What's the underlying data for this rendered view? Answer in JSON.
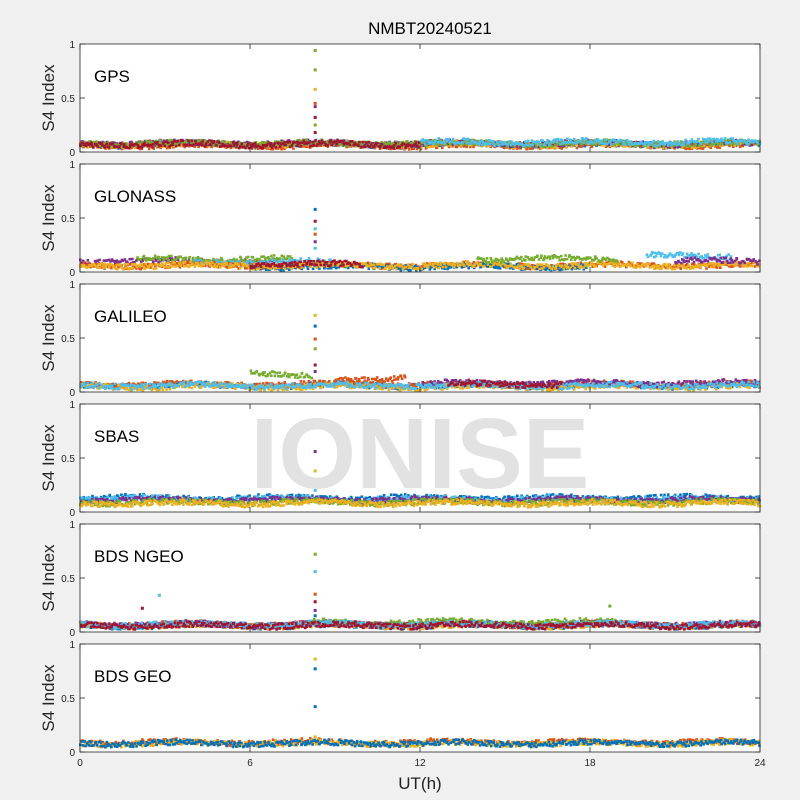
{
  "figure": {
    "title": "NMBT20240521",
    "watermark": "IONISE"
  },
  "colors": {
    "background": "#f0f0f0",
    "axes_bg": "#ffffff",
    "palette": [
      "#0072BD",
      "#D95319",
      "#EDB120",
      "#7E2F8E",
      "#77AC30",
      "#4DBEEE",
      "#A2142F"
    ],
    "watermark": "#e2e2e2"
  },
  "chart_data": [
    {
      "type": "scatter",
      "panel": "GPS",
      "title": "GPS",
      "ylabel": "S4 Index",
      "xlabel": "",
      "xlim": [
        0,
        24
      ],
      "ylim": [
        0,
        1
      ],
      "yticks": [
        "0",
        "0.5",
        "1"
      ],
      "xticks": [],
      "baseline": [
        {
          "color": "#0072BD",
          "level": 0.07,
          "t0": 0,
          "t1": 24
        },
        {
          "color": "#D95319",
          "level": 0.06,
          "t0": 0,
          "t1": 24
        },
        {
          "color": "#EDB120",
          "level": 0.07,
          "t0": 0,
          "t1": 24
        },
        {
          "color": "#7E2F8E",
          "level": 0.08,
          "t0": 0,
          "t1": 24
        },
        {
          "color": "#77AC30",
          "level": 0.08,
          "t0": 0,
          "t1": 24
        },
        {
          "color": "#4DBEEE",
          "level": 0.09,
          "t0": 12,
          "t1": 24
        },
        {
          "color": "#A2142F",
          "level": 0.07,
          "t0": 0,
          "t1": 12
        }
      ],
      "spike": {
        "t": 8.3,
        "points": [
          {
            "v": 0.94,
            "color": "#77AC30"
          },
          {
            "v": 0.76,
            "color": "#77AC30"
          },
          {
            "v": 0.58,
            "color": "#EDB120"
          },
          {
            "v": 0.45,
            "color": "#D95319"
          },
          {
            "v": 0.42,
            "color": "#7E2F8E"
          },
          {
            "v": 0.32,
            "color": "#A2142F"
          },
          {
            "v": 0.25,
            "color": "#77AC30"
          },
          {
            "v": 0.18,
            "color": "#A2142F"
          }
        ]
      }
    },
    {
      "type": "scatter",
      "panel": "GLONASS",
      "title": "GLONASS",
      "ylabel": "S4 Index",
      "xlabel": "",
      "xlim": [
        0,
        24
      ],
      "ylim": [
        0,
        1
      ],
      "yticks": [
        "0",
        "0.5",
        "1"
      ],
      "xticks": [],
      "baseline": [
        {
          "color": "#7E2F8E",
          "level": 0.1,
          "t0": 0,
          "t1": 7
        },
        {
          "color": "#77AC30",
          "level": 0.12,
          "t0": 2,
          "t1": 7.5
        },
        {
          "color": "#4DBEEE",
          "level": 0.09,
          "t0": 4,
          "t1": 9
        },
        {
          "color": "#D95319",
          "level": 0.06,
          "t0": 0,
          "t1": 24
        },
        {
          "color": "#0072BD",
          "level": 0.05,
          "t0": 6,
          "t1": 18
        },
        {
          "color": "#EDB120",
          "level": 0.06,
          "t0": 0,
          "t1": 24
        },
        {
          "color": "#77AC30",
          "level": 0.12,
          "t0": 14,
          "t1": 19
        },
        {
          "color": "#4DBEEE",
          "level": 0.15,
          "t0": 20,
          "t1": 23
        },
        {
          "color": "#7E2F8E",
          "level": 0.1,
          "t0": 21,
          "t1": 24
        },
        {
          "color": "#A2142F",
          "level": 0.07,
          "t0": 6,
          "t1": 10
        }
      ],
      "spike": {
        "t": 8.3,
        "points": [
          {
            "v": 0.58,
            "color": "#0072BD"
          },
          {
            "v": 0.47,
            "color": "#A2142F"
          },
          {
            "v": 0.4,
            "color": "#4DBEEE"
          },
          {
            "v": 0.35,
            "color": "#D95319"
          },
          {
            "v": 0.28,
            "color": "#7E2F8E"
          },
          {
            "v": 0.22,
            "color": "#4DBEEE"
          }
        ]
      }
    },
    {
      "type": "scatter",
      "panel": "GALILEO",
      "title": "GALILEO",
      "ylabel": "S4 Index",
      "xlabel": "",
      "xlim": [
        0,
        24
      ],
      "ylim": [
        0,
        1
      ],
      "yticks": [
        "0",
        "0.5",
        "1"
      ],
      "xticks": [],
      "baseline": [
        {
          "color": "#0072BD",
          "level": 0.06,
          "t0": 0,
          "t1": 24
        },
        {
          "color": "#D95319",
          "level": 0.07,
          "t0": 0,
          "t1": 24
        },
        {
          "color": "#EDB120",
          "level": 0.05,
          "t0": 0,
          "t1": 24
        },
        {
          "color": "#77AC30",
          "level": 0.16,
          "t0": 6,
          "t1": 8.2
        },
        {
          "color": "#D95319",
          "level": 0.12,
          "t0": 9,
          "t1": 11.5
        },
        {
          "color": "#7E2F8E",
          "level": 0.08,
          "t0": 12,
          "t1": 24
        },
        {
          "color": "#4DBEEE",
          "level": 0.06,
          "t0": 0,
          "t1": 24
        },
        {
          "color": "#A2142F",
          "level": 0.07,
          "t0": 13,
          "t1": 17
        }
      ],
      "spike": {
        "t": 8.3,
        "points": [
          {
            "v": 0.71,
            "color": "#EDB120"
          },
          {
            "v": 0.61,
            "color": "#0072BD"
          },
          {
            "v": 0.49,
            "color": "#D95319"
          },
          {
            "v": 0.4,
            "color": "#77AC30"
          },
          {
            "v": 0.25,
            "color": "#A2142F"
          },
          {
            "v": 0.19,
            "color": "#7E2F8E"
          }
        ]
      }
    },
    {
      "type": "scatter",
      "panel": "SBAS",
      "title": "SBAS",
      "ylabel": "S4 Index",
      "xlabel": "",
      "xlim": [
        0,
        24
      ],
      "ylim": [
        0,
        1
      ],
      "yticks": [
        "0",
        "0.5",
        "1"
      ],
      "xticks": [],
      "baseline": [
        {
          "color": "#0072BD",
          "level": 0.13,
          "t0": 0,
          "t1": 24
        },
        {
          "color": "#4DBEEE",
          "level": 0.12,
          "t0": 0,
          "t1": 24
        },
        {
          "color": "#7E2F8E",
          "level": 0.11,
          "t0": 0,
          "t1": 24
        },
        {
          "color": "#77AC30",
          "level": 0.09,
          "t0": 0,
          "t1": 24
        },
        {
          "color": "#EDB120",
          "level": 0.08,
          "t0": 0,
          "t1": 24
        }
      ],
      "spike": {
        "t": 8.3,
        "points": [
          {
            "v": 0.56,
            "color": "#7E2F8E"
          },
          {
            "v": 0.38,
            "color": "#EDB120"
          },
          {
            "v": 0.2,
            "color": "#4DBEEE"
          }
        ]
      }
    },
    {
      "type": "scatter",
      "panel": "BDS NGEO",
      "title": "BDS NGEO",
      "ylabel": "S4 Index",
      "xlabel": "",
      "xlim": [
        0,
        24
      ],
      "ylim": [
        0,
        1
      ],
      "yticks": [
        "0",
        "0.5",
        "1"
      ],
      "xticks": [],
      "baseline": [
        {
          "color": "#0072BD",
          "level": 0.06,
          "t0": 0,
          "t1": 24
        },
        {
          "color": "#D95319",
          "level": 0.07,
          "t0": 0,
          "t1": 24
        },
        {
          "color": "#EDB120",
          "level": 0.06,
          "t0": 0,
          "t1": 24
        },
        {
          "color": "#7E2F8E",
          "level": 0.07,
          "t0": 0,
          "t1": 24
        },
        {
          "color": "#77AC30",
          "level": 0.09,
          "t0": 8,
          "t1": 19
        },
        {
          "color": "#4DBEEE",
          "level": 0.07,
          "t0": 0,
          "t1": 24
        },
        {
          "color": "#A2142F",
          "level": 0.06,
          "t0": 0,
          "t1": 24
        }
      ],
      "outliers": [
        {
          "t": 2.8,
          "v": 0.34,
          "color": "#4DBEEE"
        },
        {
          "t": 2.2,
          "v": 0.22,
          "color": "#A2142F"
        },
        {
          "t": 18.7,
          "v": 0.24,
          "color": "#77AC30"
        }
      ],
      "spike": {
        "t": 8.3,
        "points": [
          {
            "v": 0.72,
            "color": "#77AC30"
          },
          {
            "v": 0.56,
            "color": "#4DBEEE"
          },
          {
            "v": 0.35,
            "color": "#D95319"
          },
          {
            "v": 0.28,
            "color": "#A2142F"
          },
          {
            "v": 0.2,
            "color": "#7E2F8E"
          },
          {
            "v": 0.15,
            "color": "#0072BD"
          }
        ]
      }
    },
    {
      "type": "scatter",
      "panel": "BDS GEO",
      "title": "BDS GEO",
      "ylabel": "S4 Index",
      "xlabel": "UT(h)",
      "xlim": [
        0,
        24
      ],
      "ylim": [
        0,
        1
      ],
      "yticks": [
        "0",
        "0.5",
        "1"
      ],
      "xticks": [
        "0",
        "6",
        "12",
        "18",
        "24"
      ],
      "baseline": [
        {
          "color": "#D95319",
          "level": 0.09,
          "t0": 0,
          "t1": 24
        },
        {
          "color": "#EDB120",
          "level": 0.08,
          "t0": 0,
          "t1": 24
        },
        {
          "color": "#0072BD",
          "level": 0.08,
          "t0": 0,
          "t1": 24
        }
      ],
      "spike": {
        "t": 8.3,
        "points": [
          {
            "v": 0.86,
            "color": "#EDB120"
          },
          {
            "v": 0.77,
            "color": "#0072BD"
          },
          {
            "v": 0.42,
            "color": "#0072BD"
          },
          {
            "v": 0.14,
            "color": "#EDB120"
          }
        ]
      }
    }
  ]
}
